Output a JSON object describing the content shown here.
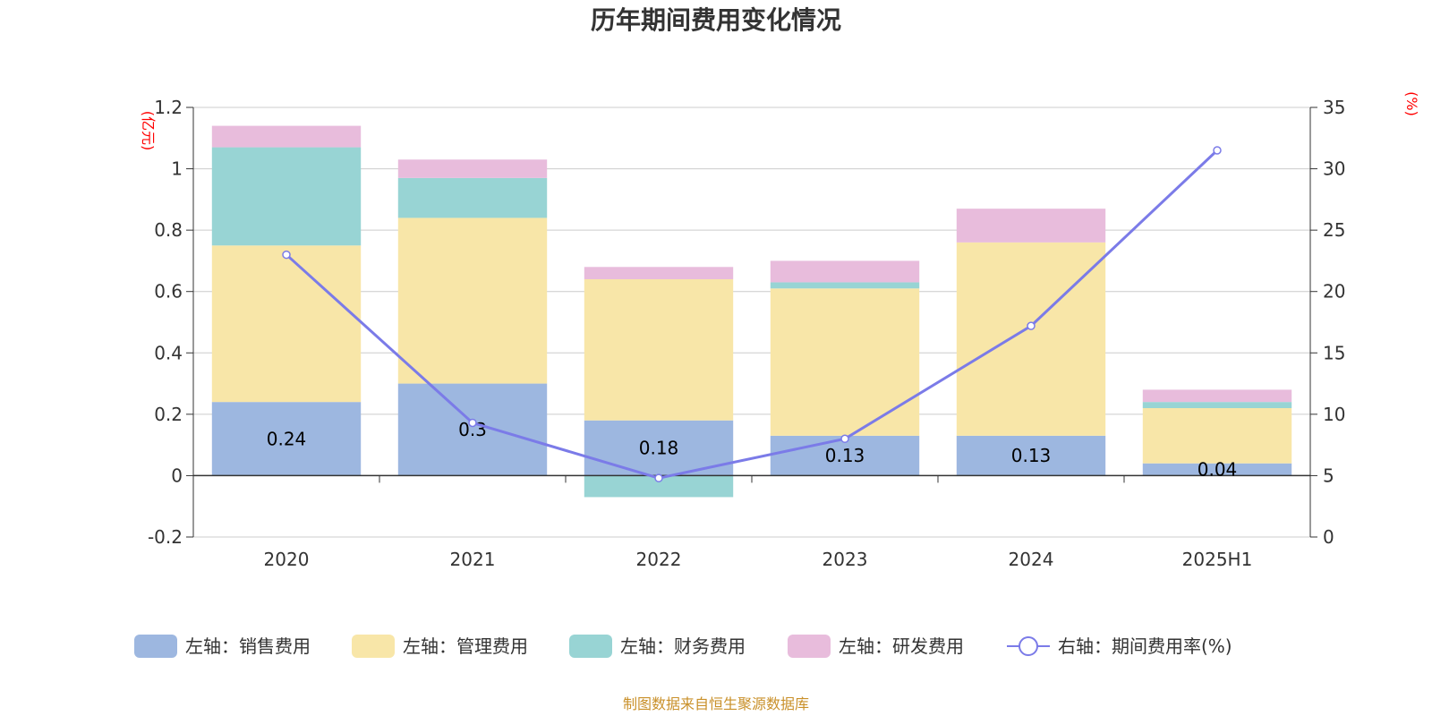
{
  "chart_data": {
    "type": "bar",
    "title": "历年期间费用变化情况",
    "categories": [
      "2020",
      "2021",
      "2022",
      "2023",
      "2024",
      "2025H1"
    ],
    "left_axis": {
      "unit": "(亿元)",
      "ylim": [
        -0.2,
        1.2
      ],
      "ticks": [
        -0.2,
        0,
        0.2,
        0.4,
        0.6,
        0.8,
        1,
        1.2
      ]
    },
    "right_axis": {
      "unit": "(%)",
      "ylim": [
        0,
        35
      ],
      "ticks": [
        0,
        5,
        10,
        15,
        20,
        25,
        30,
        35
      ]
    },
    "stacked": true,
    "series": [
      {
        "name": "左轴：销售费用",
        "axis": "left",
        "color": "#9db7e0",
        "values": [
          0.24,
          0.3,
          0.18,
          0.13,
          0.13,
          0.04
        ],
        "labels": [
          "0.24",
          "0.3",
          "0.18",
          "0.13",
          "0.13",
          "0.04"
        ]
      },
      {
        "name": "左轴：管理费用",
        "axis": "left",
        "color": "#f8e6a8",
        "values": [
          0.51,
          0.54,
          0.46,
          0.48,
          0.63,
          0.18
        ]
      },
      {
        "name": "左轴：财务费用",
        "axis": "left",
        "color": "#98d4d4",
        "values": [
          0.32,
          0.13,
          -0.07,
          0.02,
          0.0,
          0.02
        ]
      },
      {
        "name": "左轴：研发费用",
        "axis": "left",
        "color": "#e8bcdc",
        "values": [
          0.07,
          0.06,
          0.04,
          0.07,
          0.11,
          0.04
        ]
      },
      {
        "name": "右轴：期间费用率(%)",
        "axis": "right",
        "type": "line",
        "color": "#7b7be8",
        "values": [
          23.0,
          9.3,
          4.8,
          8.0,
          17.2,
          31.5
        ]
      }
    ],
    "grid": true,
    "legend_position": "bottom"
  },
  "footer": {
    "source": "制图数据来自恒生聚源数据库"
  }
}
